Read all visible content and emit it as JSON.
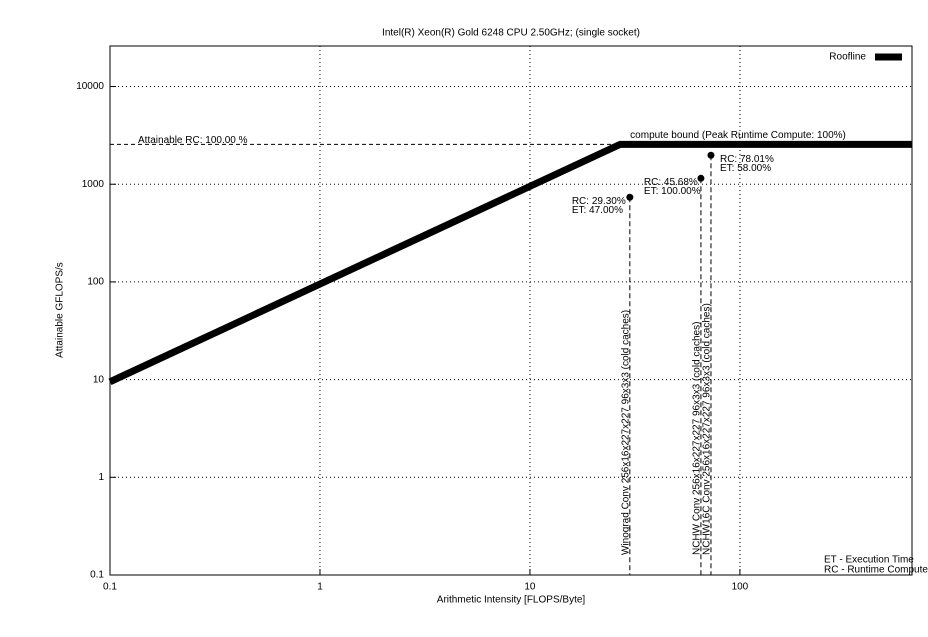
{
  "chart_data": {
    "type": "line",
    "title": "Intel(R) Xeon(R) Gold 6248 CPU 2.50GHz; (single socket)",
    "xlabel": "Arithmetic Intensity [FLOPS/Byte]",
    "ylabel": "Attainable GFLOPS/s",
    "log_x": true,
    "log_y": true,
    "grid": true,
    "legend": "upper right",
    "xlim": [
      0.1,
      660
    ],
    "ylim": [
      0.1,
      26000
    ],
    "xticks": [
      0.1,
      1,
      10,
      100
    ],
    "yticks": [
      0.1,
      1,
      10,
      100,
      1000,
      10000
    ],
    "series": [
      {
        "name": "Roofline",
        "color": "#000000",
        "x": [
          0.1,
          26.9,
          660
        ],
        "values": [
          9.5,
          2560,
          2560
        ]
      }
    ],
    "kernels": [
      {
        "label": "Winograd Conv 256x16x227x227 96x3x3 (cold caches)",
        "x": 29.9,
        "y": 736,
        "rc": "RC: 29.30%",
        "et": "ET: 47.00%"
      },
      {
        "label": "NCHW Conv 256x16x227x227 96x3x3 (cold caches)",
        "x": 65.2,
        "y": 1150,
        "rc": "RC: 45.68%",
        "et": "ET: 100.00%"
      },
      {
        "label": "NCHW16C Conv 256x16x227x227 96x3x3 (cold caches)",
        "x": 72.8,
        "y": 1980,
        "rc": "RC: 78.01%",
        "et": "ET: 58.00%"
      }
    ],
    "attainable": "Attainable RC: 100.00 %",
    "compute_bound": "compute bound (Peak Runtime Compute: 100%)",
    "notes": [
      "ET - Execution Time",
      "RC - Runtime Compute"
    ]
  }
}
